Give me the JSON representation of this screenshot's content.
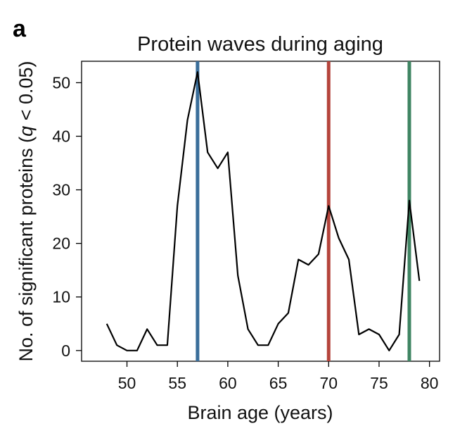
{
  "panel_label": "a",
  "chart_data": {
    "type": "line",
    "title": "Protein waves during aging",
    "xlabel": "Brain age (years)",
    "ylabel": "No. of significant proteins (q < 0.05)",
    "ylabel_parts": [
      "No. of significant proteins (",
      "q",
      " < 0.05)"
    ],
    "xlim": [
      45.5,
      81
    ],
    "ylim": [
      -2,
      54
    ],
    "xticks": [
      50,
      55,
      60,
      65,
      70,
      75,
      80
    ],
    "yticks": [
      0,
      10,
      20,
      30,
      40,
      50
    ],
    "grid": false,
    "series": [
      {
        "color": "#000000",
        "x": [
          48,
          49,
          50,
          51,
          52,
          53,
          54,
          55,
          56,
          57,
          58,
          59,
          60,
          61,
          62,
          63,
          64,
          65,
          66,
          67,
          68,
          69,
          70,
          71,
          72,
          73,
          74,
          75,
          76,
          77,
          78,
          79
        ],
        "y": [
          5,
          1,
          0,
          0,
          4,
          1,
          1,
          27,
          43,
          52,
          37,
          34,
          37,
          14,
          4,
          1,
          1,
          5,
          7,
          17,
          16,
          18,
          27,
          21,
          17,
          3,
          4,
          3,
          0,
          3,
          28,
          13
        ]
      }
    ],
    "vlines": [
      {
        "x": 57,
        "color": "#3a6e9a"
      },
      {
        "x": 70,
        "color": "#b5443c"
      },
      {
        "x": 78,
        "color": "#3f8563"
      }
    ]
  }
}
